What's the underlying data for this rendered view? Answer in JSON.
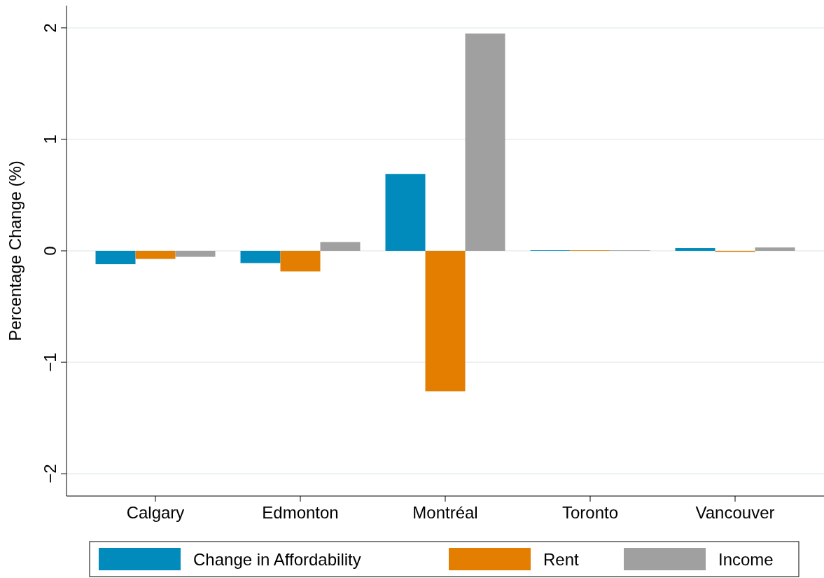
{
  "chart_data": {
    "type": "bar",
    "ylabel": "Percentage Change (%)",
    "categories": [
      "Calgary",
      "Edmonton",
      "Montréal",
      "Toronto",
      "Vancouver"
    ],
    "series": [
      {
        "name": "Change in Affordability",
        "color": "#008bbc",
        "values": [
          -0.12,
          -0.11,
          0.69,
          0.005,
          0.025
        ]
      },
      {
        "name": "Rent",
        "color": "#e37e00",
        "values": [
          -0.073,
          -0.185,
          -1.26,
          0.005,
          -0.01
        ]
      },
      {
        "name": "Income",
        "color": "#a0a0a0",
        "values": [
          -0.054,
          0.079,
          1.95,
          0.005,
          0.03
        ]
      }
    ],
    "ylim": [
      -2.2,
      2.2
    ],
    "yticks": [
      {
        "value": -2,
        "label": "−2"
      },
      {
        "value": -1,
        "label": "−1"
      },
      0,
      1,
      2
    ],
    "grid": "y",
    "legend": "bottom"
  }
}
